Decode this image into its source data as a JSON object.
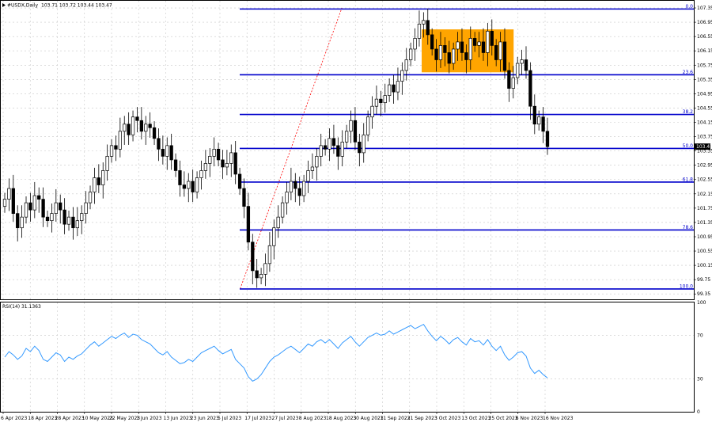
{
  "header": {
    "symbol": "#USDX,Daily",
    "ohlc": "103.71 103.72 103.44 103.47"
  },
  "rsi_panel": {
    "label": "RSI(14) 31.1363"
  },
  "last_price_tag": "103.47",
  "colors": {
    "fib_lines": "#0000cc",
    "highlight_box": "#ffa500",
    "rsi_line": "#3399ff",
    "trend_line": "#ff0000",
    "candles": "#000000"
  },
  "chart_data": [
    {
      "type": "candlestick",
      "title": "",
      "price_axis_ticks": [
        "107.35",
        "106.95",
        "106.55",
        "106.15",
        "105.75",
        "105.35",
        "104.95",
        "104.55",
        "104.15",
        "103.75",
        "103.35",
        "102.95",
        "102.55",
        "102.15",
        "101.75",
        "101.35",
        "100.95",
        "100.55",
        "100.15",
        "99.75",
        "99.35"
      ],
      "date_axis_ticks": [
        "6 Apr 2023",
        "18 Apr 2023",
        "28 Apr 2023",
        "10 May 2023",
        "22 May 2023",
        "1 Jun 2023",
        "13 Jun 2023",
        "23 Jun 2023",
        "5 Jul 2023",
        "17 Jul 2023",
        "27 Jul 2023",
        "8 Aug 2023",
        "18 Aug 2023",
        "30 Aug 2023",
        "11 Sep 2023",
        "21 Sep 2023",
        "3 Oct 2023",
        "13 Oct 2023",
        "25 Oct 2023",
        "6 Nov 2023",
        "16 Nov 2023"
      ],
      "ylim": [
        99.2,
        107.55
      ],
      "fibonacci_levels": [
        {
          "label": "0.0",
          "price": 107.32
        },
        {
          "label": "23.6",
          "price": 105.48
        },
        {
          "label": "38.2",
          "price": 104.37
        },
        {
          "label": "50.0",
          "price": 103.42
        },
        {
          "label": "61.8",
          "price": 102.48
        },
        {
          "label": "78.6",
          "price": 101.14
        },
        {
          "label": "100.0",
          "price": 99.49
        }
      ],
      "highlight_zone": {
        "from_date": "26 Sep 2023",
        "to_date": "3 Nov 2023",
        "price_low": 105.55,
        "price_high": 106.75
      },
      "trend_line": {
        "from": {
          "date": "13 Jul 2023",
          "price": 99.5
        },
        "to": {
          "date": "24 Aug 2023",
          "price": 107.35
        }
      },
      "close_series": [
        102.0,
        102.3,
        101.6,
        101.2,
        101.5,
        101.9,
        101.7,
        102.1,
        102.0,
        101.5,
        101.4,
        101.6,
        101.9,
        101.7,
        101.3,
        101.5,
        101.2,
        101.4,
        101.6,
        101.9,
        102.2,
        102.6,
        102.4,
        102.8,
        103.2,
        103.5,
        103.4,
        103.9,
        104.1,
        103.8,
        104.3,
        104.2,
        103.9,
        104.1,
        104.0,
        103.7,
        103.4,
        103.2,
        103.5,
        103.1,
        102.8,
        102.4,
        102.3,
        102.5,
        102.2,
        102.6,
        102.8,
        103.0,
        103.2,
        103.4,
        103.1,
        102.9,
        103.0,
        103.3,
        102.7,
        102.3,
        101.8,
        100.8,
        100.0,
        99.8,
        99.9,
        100.2,
        100.7,
        101.2,
        101.5,
        101.9,
        102.2,
        102.5,
        102.3,
        102.1,
        102.5,
        102.8,
        102.9,
        103.2,
        103.5,
        103.4,
        103.7,
        103.5,
        103.2,
        103.6,
        103.9,
        104.2,
        103.6,
        103.3,
        103.8,
        104.3,
        104.6,
        104.8,
        104.7,
        104.9,
        105.2,
        105.0,
        105.3,
        105.6,
        105.9,
        106.2,
        106.5,
        106.9,
        107.0,
        106.6,
        106.2,
        105.9,
        106.3,
        106.1,
        105.8,
        106.2,
        106.4,
        106.1,
        105.9,
        106.5,
        106.3,
        106.4,
        106.1,
        106.7,
        106.3,
        105.9,
        106.4,
        105.6,
        105.1,
        105.4,
        105.8,
        105.9,
        105.6,
        104.6,
        104.1,
        104.3,
        103.9,
        103.47
      ],
      "last_close": 103.47
    },
    {
      "type": "line",
      "title": "",
      "series": [
        {
          "name": "RSI(14)",
          "values": [
            50,
            55,
            52,
            48,
            51,
            58,
            55,
            60,
            56,
            48,
            46,
            50,
            54,
            52,
            46,
            50,
            48,
            51,
            53,
            57,
            61,
            64,
            60,
            63,
            66,
            69,
            67,
            70,
            72,
            68,
            71,
            70,
            66,
            64,
            62,
            58,
            54,
            52,
            55,
            50,
            47,
            44,
            45,
            48,
            46,
            50,
            54,
            56,
            58,
            60,
            56,
            53,
            55,
            57,
            48,
            44,
            40,
            32,
            28,
            30,
            34,
            40,
            46,
            50,
            52,
            55,
            58,
            60,
            57,
            54,
            58,
            62,
            60,
            64,
            66,
            63,
            66,
            62,
            58,
            63,
            66,
            69,
            64,
            60,
            64,
            68,
            70,
            72,
            70,
            71,
            74,
            71,
            73,
            75,
            77,
            79,
            76,
            78,
            80,
            74,
            69,
            65,
            69,
            66,
            62,
            66,
            68,
            64,
            61,
            67,
            64,
            65,
            61,
            66,
            60,
            56,
            60,
            52,
            47,
            50,
            54,
            55,
            51,
            40,
            35,
            38,
            34,
            31
          ]
        }
      ],
      "yaxis_ticks": [
        "100",
        "70",
        "30",
        "0"
      ],
      "ylim": [
        0,
        100
      ],
      "reference_lines": [
        70,
        30
      ]
    }
  ]
}
